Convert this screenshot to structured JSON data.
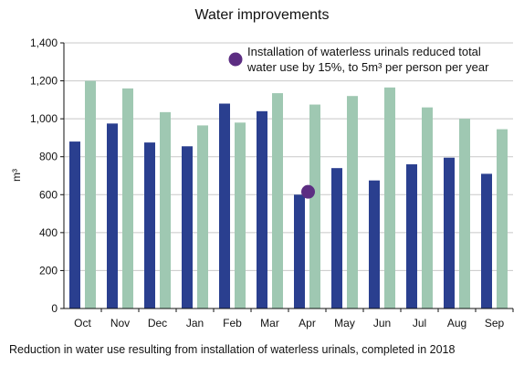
{
  "chart_data": {
    "type": "bar",
    "title": "Water improvements",
    "caption": "Reduction in water use resulting from installation of waterless urinals, completed in 2018",
    "ylabel": "m³",
    "xlabel": "",
    "ylim": [
      0,
      1400
    ],
    "yticks": [
      "0",
      "200",
      "400",
      "600",
      "800",
      "1,000",
      "1,200",
      "1,400"
    ],
    "categories": [
      "Oct",
      "Nov",
      "Dec",
      "Jan",
      "Feb",
      "Mar",
      "Apr",
      "May",
      "Jun",
      "Jul",
      "Aug",
      "Sep"
    ],
    "series": [
      {
        "color": "#2a3f8f",
        "values": [
          880,
          975,
          875,
          855,
          1080,
          1040,
          600,
          740,
          675,
          760,
          795,
          710
        ]
      },
      {
        "color": "#9fc8b2",
        "values": [
          1200,
          1160,
          1035,
          965,
          980,
          1135,
          1075,
          1120,
          1165,
          1060,
          1000,
          945
        ]
      }
    ],
    "annotation": {
      "text_line1": "Installation of waterless urinals reduced total",
      "text_line2": "water use by 15%, to 5m³ per person per year",
      "marker_color": "#5c2d82",
      "marker_category": "Apr",
      "marker_value": 615
    },
    "grid": true,
    "gridline_color": "#c8c8c8"
  }
}
